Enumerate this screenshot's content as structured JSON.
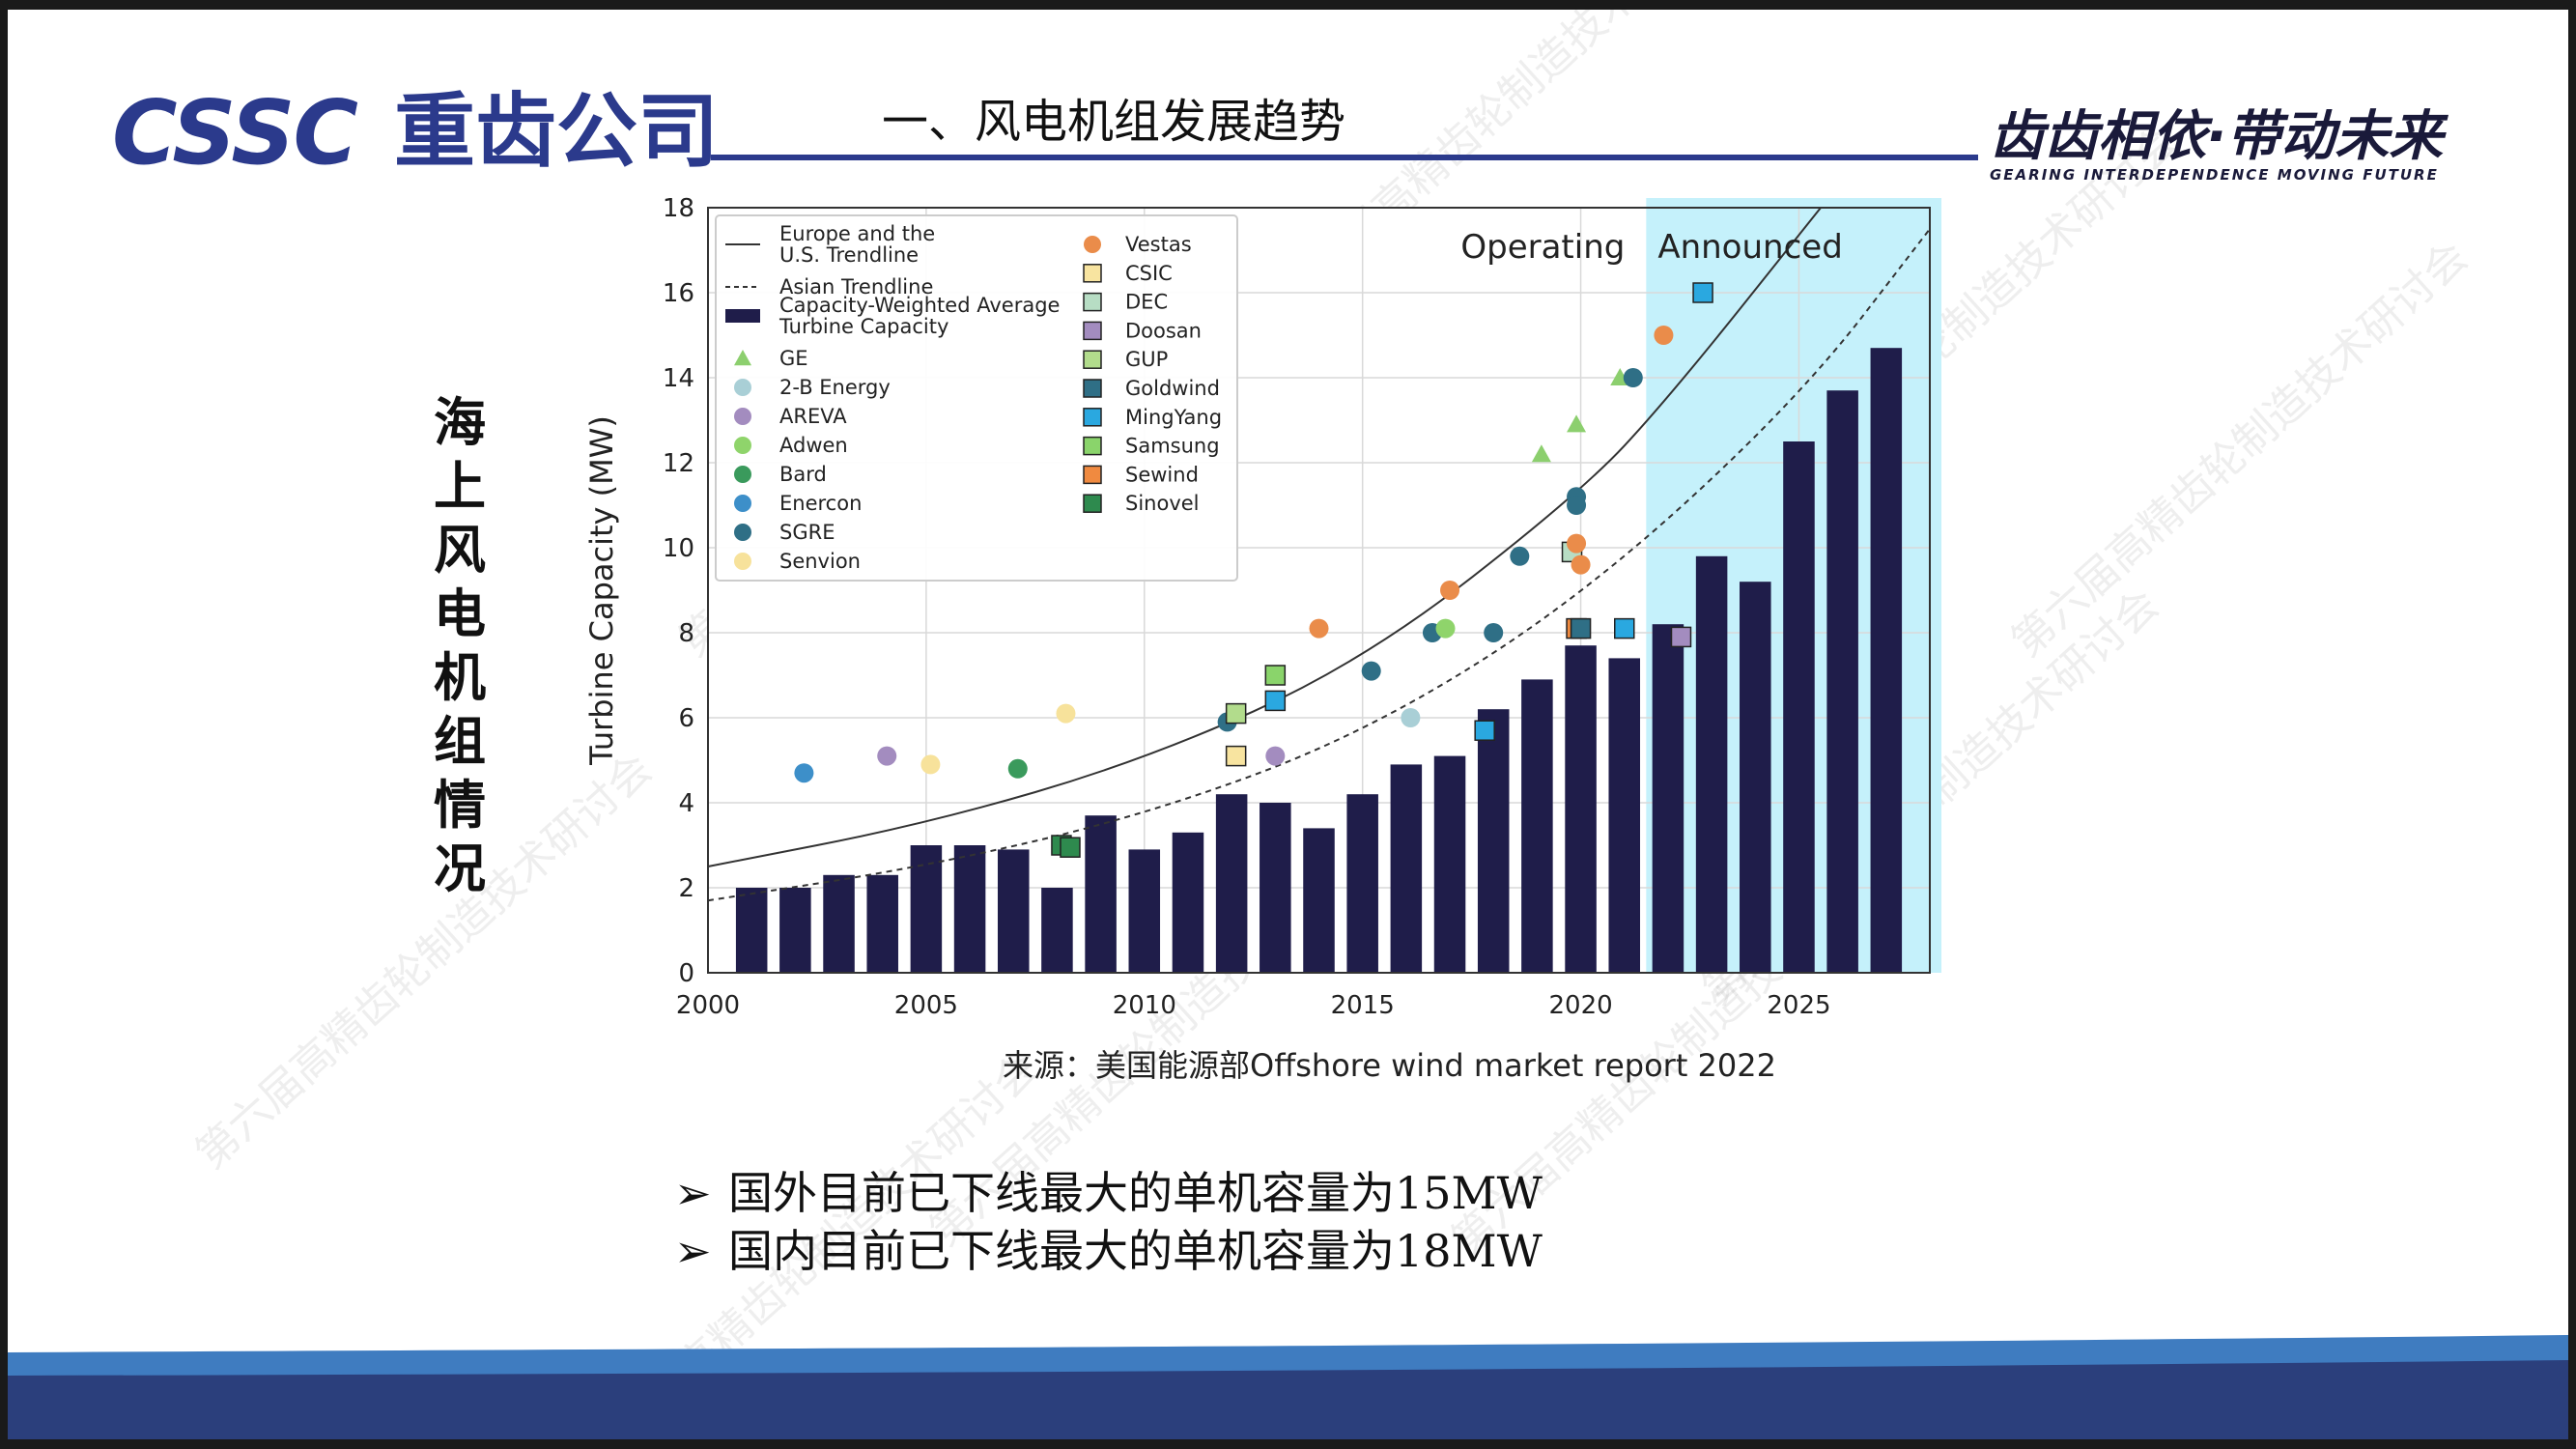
{
  "header": {
    "logo_latin": "CSSC",
    "logo_chinese": "重齿公司",
    "section_title": "一、风电机组发展趋势",
    "slogan": "齿齿相依·带动未来",
    "slogan_en": "GEARING INTERDEPENDENCE MOVING FUTURE"
  },
  "side_title": [
    "海",
    "上",
    "风",
    "电",
    "机",
    "组",
    "情",
    "况"
  ],
  "source_note": "来源：美国能源部Offshore wind market report 2022",
  "bullets": [
    {
      "arrow": "➢",
      "text": "国外目前已下线最大的单机容量为15MW"
    },
    {
      "arrow": "➢",
      "text": "国内目前已下线最大的单机容量为18MW"
    }
  ],
  "watermark_text": "第六届高精齿轮制造技术研讨会",
  "colors": {
    "brand_blue": "#2b3a8c",
    "bar": "#1f1d4a",
    "announced_band": "#c5f1fb",
    "footer_light": "#3f7cc0",
    "footer_dark": "#2b3f7c"
  },
  "chart_data": {
    "type": "bar",
    "ylabel": "Turbine Capacity (MW)",
    "xlim": [
      2000,
      2028
    ],
    "ylim": [
      0,
      18
    ],
    "xticks": [
      2000,
      2005,
      2010,
      2015,
      2020,
      2025
    ],
    "yticks": [
      0,
      2,
      4,
      6,
      8,
      10,
      12,
      14,
      16,
      18
    ],
    "grid": true,
    "legend_position": "top-left",
    "annotations": {
      "operating": "Operating",
      "announced": "Announced",
      "announced_start": 2021.5
    },
    "bars": {
      "name": "Capacity-Weighted Average Turbine Capacity",
      "x": [
        2001,
        2002,
        2003,
        2004,
        2005,
        2006,
        2007,
        2008,
        2009,
        2010,
        2011,
        2012,
        2013,
        2014,
        2015,
        2016,
        2017,
        2018,
        2019,
        2020,
        2021,
        2022,
        2023,
        2024,
        2025,
        2026,
        2027
      ],
      "values": [
        2.0,
        2.0,
        2.3,
        2.3,
        3.0,
        3.0,
        2.9,
        2.0,
        3.7,
        2.9,
        3.3,
        4.2,
        4.0,
        3.4,
        4.2,
        4.9,
        5.1,
        6.2,
        6.9,
        7.7,
        7.4,
        8.2,
        9.8,
        9.2,
        12.5,
        13.7,
        14.7
      ]
    },
    "trendlines": [
      {
        "name": "Europe and the U.S. Trendline",
        "style": "solid",
        "x": [
          2000,
          2005,
          2010,
          2015,
          2020,
          2022,
          2025.5
        ],
        "values": [
          2.5,
          3.5,
          5.0,
          7.3,
          11.3,
          13.5,
          18.0
        ]
      },
      {
        "name": "Asian Trendline",
        "style": "dashed",
        "x": [
          2000,
          2005,
          2010,
          2015,
          2020,
          2025,
          2028
        ],
        "values": [
          1.7,
          2.5,
          3.7,
          5.6,
          8.8,
          13.5,
          17.5
        ]
      }
    ],
    "legend_col1": [
      {
        "label": "Europe and the U.S. Trendline",
        "kind": "solid"
      },
      {
        "label": "Asian Trendline",
        "kind": "dashed"
      },
      {
        "label": "Capacity-Weighted Average Turbine Capacity",
        "kind": "bar"
      },
      {
        "label": "GE",
        "kind": "triangle",
        "color": "#8ccf6e"
      },
      {
        "label": "2-B Energy",
        "kind": "circle",
        "color": "#a9cfd6"
      },
      {
        "label": "AREVA",
        "kind": "circle",
        "color": "#a38cbf"
      },
      {
        "label": "Adwen",
        "kind": "circle",
        "color": "#8fd46b"
      },
      {
        "label": "Bard",
        "kind": "circle",
        "color": "#3a9a5c"
      },
      {
        "label": "Enercon",
        "kind": "circle",
        "color": "#3d8fc9"
      },
      {
        "label": "SGRE",
        "kind": "circle",
        "color": "#2f6f86"
      },
      {
        "label": "Senvion",
        "kind": "circle",
        "color": "#f7e29b"
      }
    ],
    "legend_col2": [
      {
        "label": "Vestas",
        "kind": "circle",
        "color": "#ea8c4a"
      },
      {
        "label": "CSIC",
        "kind": "square",
        "color": "#f8e4a0"
      },
      {
        "label": "DEC",
        "kind": "square",
        "color": "#b7ddc4"
      },
      {
        "label": "Doosan",
        "kind": "square",
        "color": "#a38cbf"
      },
      {
        "label": "GUP",
        "kind": "square",
        "color": "#b2dc8c"
      },
      {
        "label": "Goldwind",
        "kind": "square",
        "color": "#2f6f86"
      },
      {
        "label": "MingYang",
        "kind": "square",
        "color": "#2aa8e0"
      },
      {
        "label": "Samsung",
        "kind": "square",
        "color": "#8ad46b"
      },
      {
        "label": "Sewind",
        "kind": "square",
        "color": "#f08a40"
      },
      {
        "label": "Sinovel",
        "kind": "square",
        "color": "#2e8a4e"
      }
    ],
    "points": [
      {
        "maker": "Enercon",
        "x": 2002.2,
        "y": 4.7
      },
      {
        "maker": "AREVA",
        "x": 2004.1,
        "y": 5.1
      },
      {
        "maker": "Senvion",
        "x": 2005.1,
        "y": 4.9
      },
      {
        "maker": "Bard",
        "x": 2007.1,
        "y": 4.8
      },
      {
        "maker": "Senvion",
        "x": 2008.2,
        "y": 6.1
      },
      {
        "maker": "Sinovel",
        "x": 2008.1,
        "y": 3.0
      },
      {
        "maker": "Sinovel",
        "x": 2008.3,
        "y": 2.95
      },
      {
        "maker": "SGRE",
        "x": 2011.9,
        "y": 5.9
      },
      {
        "maker": "GUP",
        "x": 2012.1,
        "y": 6.1
      },
      {
        "maker": "CSIC",
        "x": 2012.1,
        "y": 5.1
      },
      {
        "maker": "Samsung",
        "x": 2013.0,
        "y": 7.0
      },
      {
        "maker": "MingYang",
        "x": 2013.0,
        "y": 6.4
      },
      {
        "maker": "AREVA",
        "x": 2013.0,
        "y": 5.1
      },
      {
        "maker": "Vestas",
        "x": 2014.0,
        "y": 8.1
      },
      {
        "maker": "SGRE",
        "x": 2015.2,
        "y": 7.1
      },
      {
        "maker": "2-B Energy",
        "x": 2016.1,
        "y": 6.0
      },
      {
        "maker": "SGRE",
        "x": 2016.6,
        "y": 8.0
      },
      {
        "maker": "Adwen",
        "x": 2016.9,
        "y": 8.1
      },
      {
        "maker": "Vestas",
        "x": 2017.0,
        "y": 9.0
      },
      {
        "maker": "MingYang",
        "x": 2017.8,
        "y": 5.7
      },
      {
        "maker": "SGRE",
        "x": 2018.0,
        "y": 8.0
      },
      {
        "maker": "SGRE",
        "x": 2018.6,
        "y": 9.8
      },
      {
        "maker": "GE",
        "x": 2019.1,
        "y": 12.2
      },
      {
        "maker": "GE",
        "x": 2019.9,
        "y": 12.9
      },
      {
        "maker": "DEC",
        "x": 2019.8,
        "y": 9.9
      },
      {
        "maker": "Vestas",
        "x": 2019.9,
        "y": 10.1
      },
      {
        "maker": "Vestas",
        "x": 2020.0,
        "y": 9.6
      },
      {
        "maker": "SGRE",
        "x": 2019.9,
        "y": 11.2
      },
      {
        "maker": "SGRE",
        "x": 2019.9,
        "y": 11.0
      },
      {
        "maker": "Sewind",
        "x": 2019.9,
        "y": 8.1
      },
      {
        "maker": "Goldwind",
        "x": 2020.0,
        "y": 8.1
      },
      {
        "maker": "GE",
        "x": 2020.9,
        "y": 14.0
      },
      {
        "maker": "SGRE",
        "x": 2021.2,
        "y": 14.0
      },
      {
        "maker": "MingYang",
        "x": 2021.0,
        "y": 8.1
      },
      {
        "maker": "Doosan",
        "x": 2022.3,
        "y": 7.9
      },
      {
        "maker": "Vestas",
        "x": 2021.9,
        "y": 15.0
      },
      {
        "maker": "MingYang",
        "x": 2022.8,
        "y": 16.0
      }
    ]
  }
}
